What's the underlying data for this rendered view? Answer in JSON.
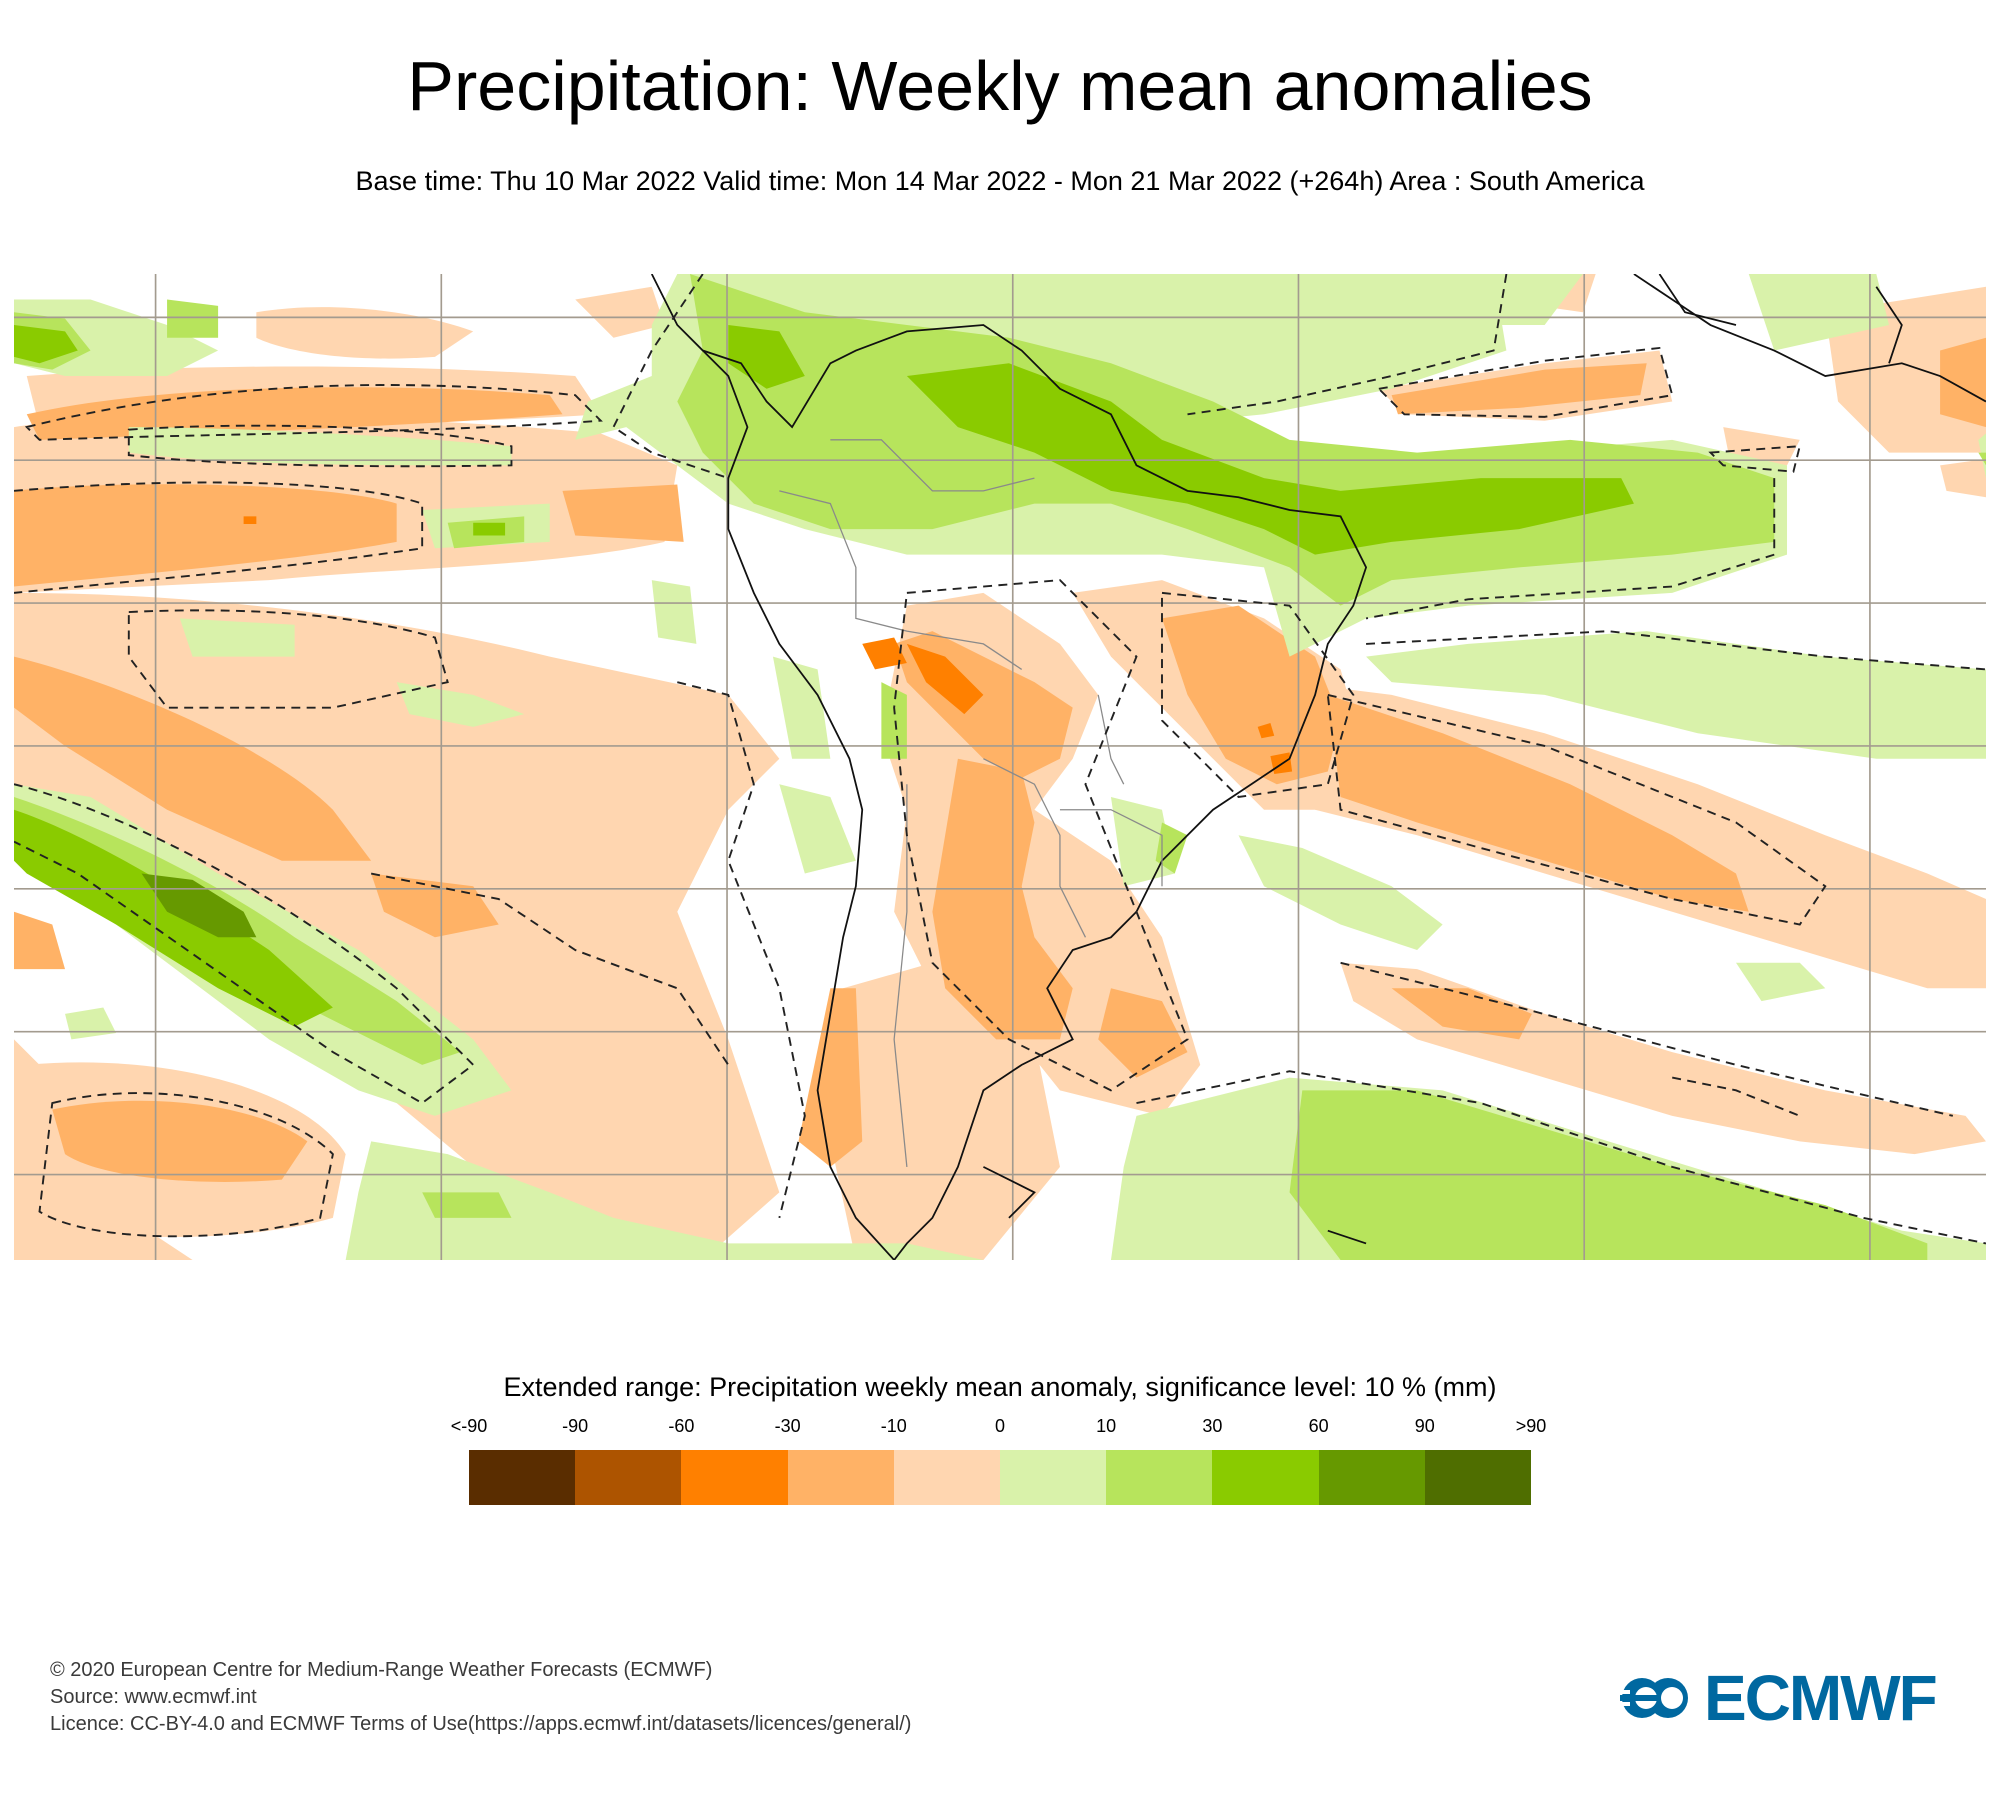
{
  "header": {
    "title": "Precipitation: Weekly mean anomalies",
    "subtitle": "Base time: Thu 10 Mar 2022 Valid time: Mon 14 Mar 2022 - Mon 21 Mar 2022 (+264h) Area : South America"
  },
  "map": {
    "area": "South America",
    "variable": "Precipitation weekly mean anomaly",
    "units": "mm",
    "contour_style": "dashed significance contour"
  },
  "legend": {
    "title": "Extended range: Precipitation weekly mean anomaly, significance level: 10 % (mm)",
    "labels": [
      "<-90",
      "-90",
      "-60",
      "-30",
      "-10",
      "0",
      "10",
      "30",
      "60",
      "90",
      ">90"
    ],
    "colors": [
      "#5a2d00",
      "#ad5400",
      "#ff8000",
      "#ffb266",
      "#ffd6b0",
      "#d9f2aa",
      "#b7e45c",
      "#8acb00",
      "#669900",
      "#4f6e00"
    ]
  },
  "footer": {
    "copyright": "© 2020 European Centre for Medium-Range Weather Forecasts (ECMWF)",
    "source": "Source: www.ecmwf.int",
    "licence": "Licence: CC-BY-4.0 and ECMWF Terms of Use(https://apps.ecmwf.int/datasets/licences/general/)"
  },
  "logo": {
    "text": "ECMWF",
    "color": "#0068a0"
  }
}
